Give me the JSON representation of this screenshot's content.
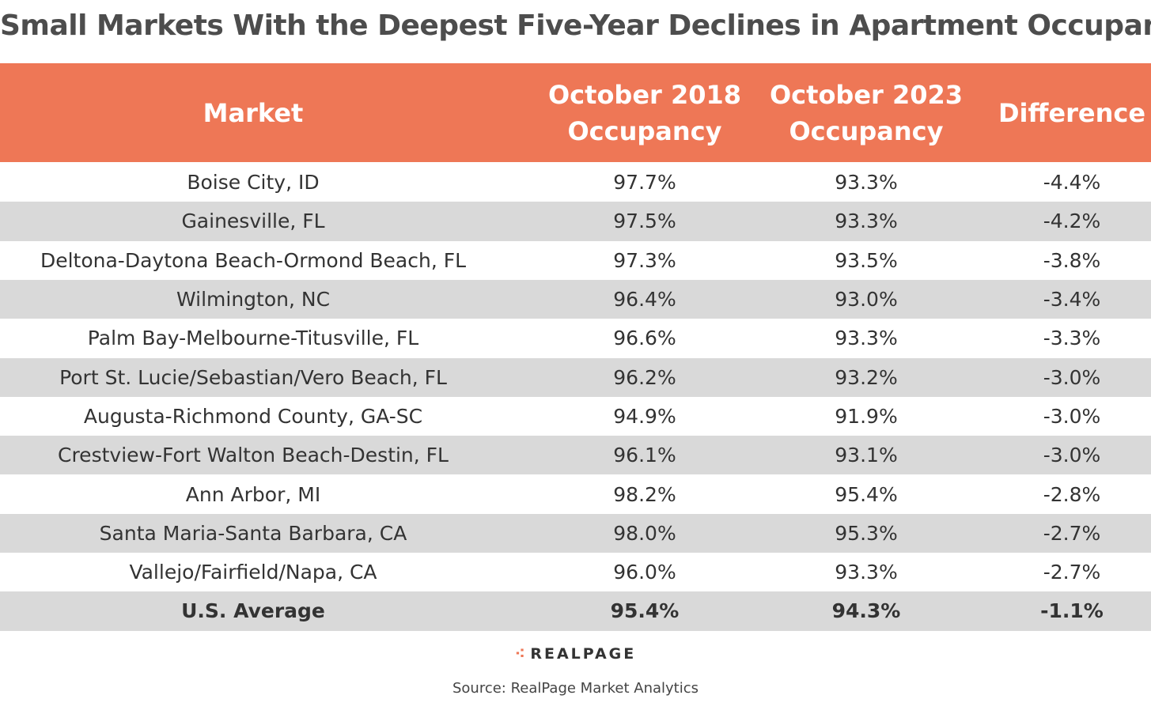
{
  "title": "Small Markets With the Deepest Five-Year Declines in Apartment Occupany",
  "table": {
    "header": [
      "Market",
      "October 2018\nOccupancy",
      "October 2023\nOccupancy",
      "Difference"
    ],
    "rows": [
      [
        "Boise City, ID",
        "97.7%",
        "93.3%",
        "-4.4%"
      ],
      [
        "Gainesville, FL",
        "97.5%",
        "93.3%",
        "-4.2%"
      ],
      [
        "Deltona-Daytona Beach-Ormond Beach, FL",
        "97.3%",
        "93.5%",
        "-3.8%"
      ],
      [
        "Wilmington, NC",
        "96.4%",
        "93.0%",
        "-3.4%"
      ],
      [
        "Palm Bay-Melbourne-Titusville, FL",
        "96.6%",
        "93.3%",
        "-3.3%"
      ],
      [
        "Port St. Lucie/Sebastian/Vero Beach, FL",
        "96.2%",
        "93.2%",
        "-3.0%"
      ],
      [
        "Augusta-Richmond County, GA-SC",
        "94.9%",
        "91.9%",
        "-3.0%"
      ],
      [
        "Crestview-Fort Walton Beach-Destin, FL",
        "96.1%",
        "93.1%",
        "-3.0%"
      ],
      [
        "Ann Arbor, MI",
        "98.2%",
        "95.4%",
        "-2.8%"
      ],
      [
        "Santa Maria-Santa Barbara, CA",
        "98.0%",
        "95.3%",
        "-2.7%"
      ],
      [
        "Vallejo/Fairfield/Napa, CA",
        "96.0%",
        "93.3%",
        "-2.7%"
      ]
    ],
    "average_row": [
      "U.S. Average",
      "95.4%",
      "94.3%",
      "-1.1%"
    ]
  },
  "logo": "REALPAGE",
  "source": "Source: RealPage Market Analytics"
}
